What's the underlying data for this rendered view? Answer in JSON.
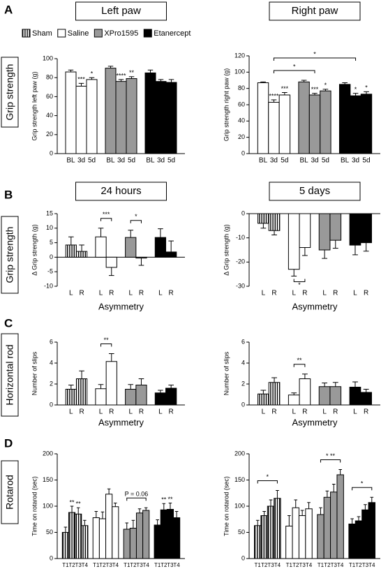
{
  "figure": {
    "rows": [
      {
        "letter": "A",
        "label": "Grip strength"
      },
      {
        "letter": "B",
        "label": "Grip strength"
      },
      {
        "letter": "C",
        "label": "Horizontal rod"
      },
      {
        "letter": "D",
        "label": "Rotarod"
      }
    ],
    "legend": [
      {
        "name": "Sham",
        "fill": "stripes"
      },
      {
        "name": "Saline",
        "fill": "#ffffff"
      },
      {
        "name": "XPro1595",
        "fill": "#999999"
      },
      {
        "name": "Etanercept",
        "fill": "#000000"
      }
    ]
  },
  "chart_data": [
    {
      "type": "bar",
      "title": "Left paw",
      "ylabel": "Grip strength left paw (g)",
      "ylim": [
        0,
        100
      ],
      "yticks": [
        0,
        20,
        40,
        60,
        80,
        100
      ],
      "series": [
        {
          "fill": "#ffffff",
          "categories": [
            "BL",
            "3d",
            "5d"
          ],
          "values": [
            86,
            71,
            78
          ],
          "errors": [
            2,
            3,
            2
          ]
        },
        {
          "fill": "#999999",
          "categories": [
            "BL",
            "3d",
            "5d"
          ],
          "values": [
            90,
            76,
            79
          ],
          "errors": [
            2,
            2,
            2
          ]
        },
        {
          "fill": "#000000",
          "categories": [
            "BL",
            "3d",
            "5d"
          ],
          "values": [
            85,
            76,
            75
          ],
          "errors": [
            3,
            2,
            3
          ]
        }
      ],
      "annotations": [
        {
          "text": "***",
          "at": [
            0,
            1
          ]
        },
        {
          "text": "*",
          "at": [
            0,
            2
          ]
        },
        {
          "text": "****",
          "at": [
            1,
            1
          ]
        },
        {
          "text": "**",
          "at": [
            1,
            2
          ]
        }
      ]
    },
    {
      "type": "bar",
      "title": "Right paw",
      "ylabel": "Grip strength right paw (g)",
      "ylim": [
        0,
        120
      ],
      "yticks": [
        0,
        20,
        40,
        60,
        80,
        100,
        120
      ],
      "series": [
        {
          "fill": "#ffffff",
          "categories": [
            "BL",
            "3d",
            "5d"
          ],
          "values": [
            87,
            63,
            72
          ],
          "errors": [
            1,
            3,
            3
          ]
        },
        {
          "fill": "#999999",
          "categories": [
            "BL",
            "3d",
            "5d"
          ],
          "values": [
            88,
            72,
            77
          ],
          "errors": [
            2,
            2,
            2
          ]
        },
        {
          "fill": "#000000",
          "categories": [
            "BL",
            "3d",
            "5d"
          ],
          "values": [
            85,
            71,
            73
          ],
          "errors": [
            2,
            3,
            3
          ]
        }
      ],
      "annotations": [
        {
          "text": "****",
          "at": [
            0,
            1
          ]
        },
        {
          "text": "***",
          "at": [
            0,
            2
          ]
        },
        {
          "text": "***",
          "at": [
            1,
            1
          ]
        },
        {
          "text": "*",
          "at": [
            1,
            2
          ]
        },
        {
          "text": "*",
          "at": [
            2,
            1
          ]
        },
        {
          "text": "*",
          "at": [
            2,
            2
          ]
        }
      ],
      "brackets": [
        {
          "text": "*",
          "from": [
            0,
            1
          ],
          "to": [
            1,
            1
          ]
        },
        {
          "text": "*",
          "from": [
            0,
            1
          ],
          "to": [
            2,
            1
          ]
        }
      ]
    },
    {
      "type": "bar",
      "title": "24 hours",
      "ylabel": "Δ Grip strength (g)",
      "xlabel": "Asymmetry",
      "ylim": [
        -10,
        15
      ],
      "yticks": [
        -10,
        -5,
        0,
        5,
        10,
        15
      ],
      "series": [
        {
          "fill": "stripes",
          "categories": [
            "L",
            "R"
          ],
          "values": [
            4.2,
            2
          ],
          "errors": [
            2.8,
            2.2
          ]
        },
        {
          "fill": "#ffffff",
          "categories": [
            "L",
            "R"
          ],
          "values": [
            7,
            -3.5
          ],
          "errors": [
            3,
            2.8
          ]
        },
        {
          "fill": "#999999",
          "categories": [
            "L",
            "R"
          ],
          "values": [
            6.8,
            -0.3
          ],
          "errors": [
            2.5,
            2.5
          ]
        },
        {
          "fill": "#000000",
          "categories": [
            "L",
            "R"
          ],
          "values": [
            6.8,
            1.8
          ],
          "errors": [
            3,
            3.8
          ]
        }
      ],
      "brackets": [
        {
          "text": "***",
          "from": [
            1,
            0
          ],
          "to": [
            1,
            1
          ]
        },
        {
          "text": "*",
          "from": [
            2,
            0
          ],
          "to": [
            2,
            1
          ]
        }
      ]
    },
    {
      "type": "bar",
      "title": "5 days",
      "ylabel": "Δ Grip strength (g)",
      "xlabel": "Asymmetry",
      "ylim": [
        -30,
        0
      ],
      "yticks": [
        -30,
        -20,
        -10,
        0
      ],
      "series": [
        {
          "fill": "stripes",
          "categories": [
            "L",
            "R"
          ],
          "values": [
            -4,
            -7
          ],
          "errors": [
            2,
            1.8
          ]
        },
        {
          "fill": "#ffffff",
          "categories": [
            "L",
            "R"
          ],
          "values": [
            -23,
            -14
          ],
          "errors": [
            2.8,
            3.3
          ]
        },
        {
          "fill": "#999999",
          "categories": [
            "L",
            "R"
          ],
          "values": [
            -15,
            -11
          ],
          "errors": [
            3.5,
            3.3
          ]
        },
        {
          "fill": "#000000",
          "categories": [
            "L",
            "R"
          ],
          "values": [
            -13,
            -12
          ],
          "errors": [
            4,
            3.5
          ]
        }
      ],
      "brackets": [
        {
          "text": "*",
          "from": [
            1,
            0
          ],
          "to": [
            1,
            1
          ],
          "side": "below"
        }
      ]
    },
    {
      "type": "bar",
      "ylabel": "Number of slips",
      "xlabel": "Asymmetry",
      "ylim": [
        0,
        6
      ],
      "yticks": [
        0,
        2,
        4,
        6
      ],
      "series": [
        {
          "fill": "stripes",
          "categories": [
            "L",
            "R"
          ],
          "values": [
            1.5,
            2.5
          ],
          "errors": [
            0.4,
            0.75
          ]
        },
        {
          "fill": "#ffffff",
          "categories": [
            "L",
            "R"
          ],
          "values": [
            1.55,
            4.15
          ],
          "errors": [
            0.4,
            0.75
          ]
        },
        {
          "fill": "#999999",
          "categories": [
            "L",
            "R"
          ],
          "values": [
            1.5,
            1.9
          ],
          "errors": [
            0.45,
            0.6
          ]
        },
        {
          "fill": "#000000",
          "categories": [
            "L",
            "R"
          ],
          "values": [
            1.15,
            1.6
          ],
          "errors": [
            0.25,
            0.3
          ]
        }
      ],
      "brackets": [
        {
          "text": "**",
          "from": [
            1,
            0
          ],
          "to": [
            1,
            1
          ]
        }
      ]
    },
    {
      "type": "bar",
      "ylabel": "Number of slips",
      "xlabel": "Asymmetry",
      "ylim": [
        0,
        6
      ],
      "yticks": [
        0,
        2,
        4,
        6
      ],
      "series": [
        {
          "fill": "stripes",
          "categories": [
            "L",
            "R"
          ],
          "values": [
            1.05,
            2.15
          ],
          "errors": [
            0.35,
            0.45
          ]
        },
        {
          "fill": "#ffffff",
          "categories": [
            "L",
            "R"
          ],
          "values": [
            0.95,
            2.5
          ],
          "errors": [
            0.2,
            0.45
          ]
        },
        {
          "fill": "#999999",
          "categories": [
            "L",
            "R"
          ],
          "values": [
            1.75,
            1.75
          ],
          "errors": [
            0.35,
            0.4
          ]
        },
        {
          "fill": "#000000",
          "categories": [
            "L",
            "R"
          ],
          "values": [
            1.7,
            1.2
          ],
          "errors": [
            0.5,
            0.3
          ]
        }
      ],
      "brackets": [
        {
          "text": "**",
          "from": [
            1,
            0
          ],
          "to": [
            1,
            1
          ]
        }
      ]
    },
    {
      "type": "bar",
      "ylabel": "Time on rotarod (sec)",
      "ylim": [
        0,
        200
      ],
      "yticks": [
        0,
        50,
        100,
        150,
        200
      ],
      "series": [
        {
          "fill": "stripes",
          "categories": [
            "T1",
            "T2",
            "T3",
            "T4"
          ],
          "values": [
            50,
            88,
            85,
            63
          ],
          "errors": [
            10,
            12,
            12,
            10
          ]
        },
        {
          "fill": "#ffffff",
          "categories": [
            "T1",
            "T2",
            "T3",
            "T4"
          ],
          "values": [
            78,
            76,
            123,
            99
          ],
          "errors": [
            12,
            13,
            10,
            7
          ]
        },
        {
          "fill": "#999999",
          "categories": [
            "T1",
            "T2",
            "T3",
            "T4"
          ],
          "values": [
            56,
            58,
            87,
            92
          ],
          "errors": [
            12,
            15,
            8,
            5
          ]
        },
        {
          "fill": "#000000",
          "categories": [
            "T1",
            "T2",
            "T3",
            "T4"
          ],
          "values": [
            64,
            93,
            94,
            78
          ],
          "errors": [
            10,
            12,
            12,
            12
          ]
        }
      ],
      "annotations": [
        {
          "text": "**",
          "at": [
            0,
            1
          ]
        },
        {
          "text": "**",
          "at": [
            0,
            2
          ]
        },
        {
          "text": "**",
          "at": [
            3,
            1
          ]
        },
        {
          "text": "**",
          "at": [
            3,
            2
          ]
        }
      ],
      "brackets": [
        {
          "text": "P = 0.06",
          "from": [
            2,
            0
          ],
          "to": [
            2,
            3
          ]
        }
      ]
    },
    {
      "type": "bar",
      "ylabel": "Time on rotarod (sec)",
      "ylim": [
        0,
        200
      ],
      "yticks": [
        0,
        50,
        100,
        150,
        200
      ],
      "series": [
        {
          "fill": "stripes",
          "categories": [
            "T1",
            "T2",
            "T3",
            "T4"
          ],
          "values": [
            63,
            82,
            100,
            115
          ],
          "errors": [
            10,
            8,
            12,
            15
          ]
        },
        {
          "fill": "#ffffff",
          "categories": [
            "T1",
            "T2",
            "T3",
            "T4"
          ],
          "values": [
            62,
            97,
            82,
            95
          ],
          "errors": [
            20,
            15,
            10,
            12
          ]
        },
        {
          "fill": "#999999",
          "categories": [
            "T1",
            "T2",
            "T3",
            "T4"
          ],
          "values": [
            84,
            117,
            127,
            160
          ],
          "errors": [
            13,
            12,
            15,
            10
          ]
        },
        {
          "fill": "#000000",
          "categories": [
            "T1",
            "T2",
            "T3",
            "T4"
          ],
          "values": [
            66,
            72,
            93,
            107
          ],
          "errors": [
            10,
            8,
            10,
            10
          ]
        }
      ],
      "brackets": [
        {
          "text": "*",
          "from": [
            0,
            0
          ],
          "to": [
            0,
            3
          ]
        },
        {
          "text": "* **",
          "from": [
            2,
            0
          ],
          "to": [
            2,
            3
          ]
        },
        {
          "text": "*",
          "from": [
            3,
            0
          ],
          "to": [
            3,
            3
          ]
        }
      ]
    }
  ]
}
